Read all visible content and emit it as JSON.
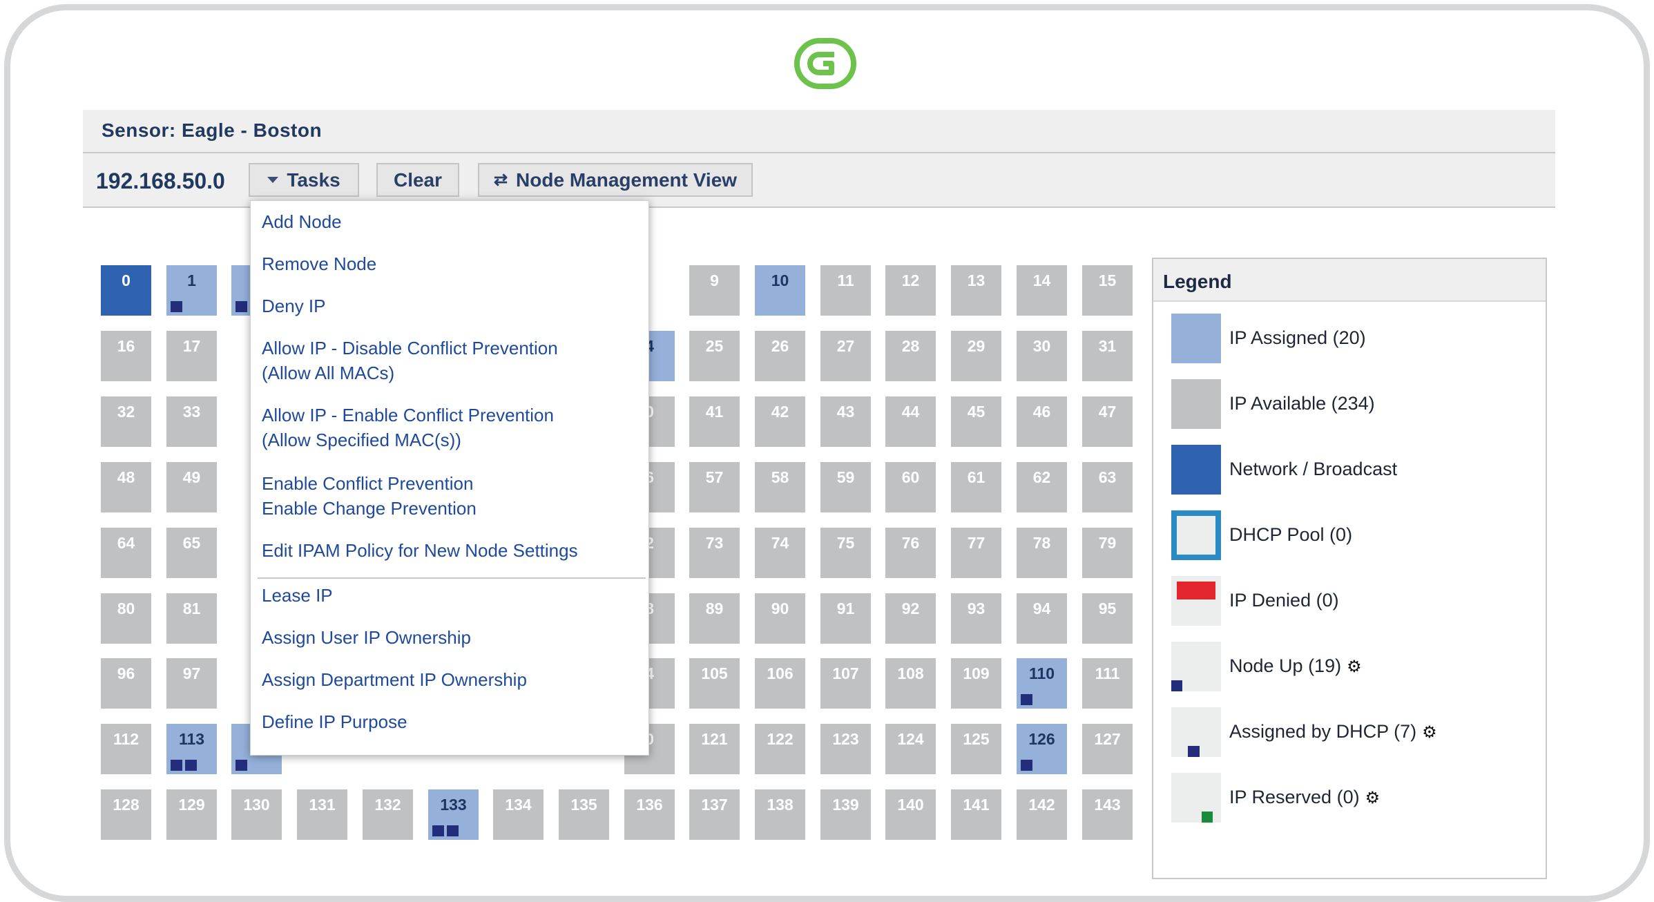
{
  "header": {
    "sensor_title": "Sensor: Eagle - Boston"
  },
  "toolbar": {
    "subnet": "192.168.50.0",
    "tasks_label": "Tasks",
    "clear_label": "Clear",
    "node_mgmt_label": "Node Management View"
  },
  "icons": {
    "logo": "g-logo-icon",
    "caret": "caret-down-icon",
    "swap": "swap-arrows-icon",
    "gear": "gear-icon"
  },
  "colors": {
    "assigned": "#95b1da",
    "available": "#c0c1c3",
    "network": "#2f63b1",
    "dhcp_pool_border": "#2a8bc4",
    "denied": "#e3262e",
    "node_up": "#222e7c",
    "reserved": "#1a8a3c",
    "logo": "#6cc24a"
  },
  "tasks_menu": {
    "items": [
      "Add Node",
      "Remove Node",
      "Deny IP",
      "Allow IP - Disable Conflict Prevention",
      "(Allow All MACs)",
      "Allow IP - Enable Conflict Prevention",
      "(Allow Specified MAC(s))",
      "Enable Conflict Prevention",
      "Enable Change Prevention",
      "Edit IPAM Policy for New Node Settings",
      "Lease IP",
      "Assign User IP Ownership",
      "Assign Department IP Ownership",
      "Define IP Purpose"
    ]
  },
  "ip_grid": {
    "visible_cells": [
      {
        "n": "0",
        "state": "network",
        "up": 0
      },
      {
        "n": "1",
        "state": "assigned",
        "up": 1
      },
      {
        "n": "",
        "state": "assigned",
        "up": 1
      },
      {
        "n": "9",
        "state": "available",
        "up": 0
      },
      {
        "n": "10",
        "state": "assigned",
        "up": 0
      },
      {
        "n": "11",
        "state": "available",
        "up": 0
      },
      {
        "n": "12",
        "state": "available",
        "up": 0
      },
      {
        "n": "13",
        "state": "available",
        "up": 0
      },
      {
        "n": "14",
        "state": "available",
        "up": 0
      },
      {
        "n": "15",
        "state": "available",
        "up": 0
      },
      {
        "n": "16",
        "state": "available",
        "up": 0
      },
      {
        "n": "17",
        "state": "available",
        "up": 0
      },
      {
        "n": "4",
        "state": "assigned",
        "up": 0
      },
      {
        "n": "25",
        "state": "available",
        "up": 0
      },
      {
        "n": "26",
        "state": "available",
        "up": 0
      },
      {
        "n": "27",
        "state": "available",
        "up": 0
      },
      {
        "n": "28",
        "state": "available",
        "up": 0
      },
      {
        "n": "29",
        "state": "available",
        "up": 0
      },
      {
        "n": "30",
        "state": "available",
        "up": 0
      },
      {
        "n": "31",
        "state": "available",
        "up": 0
      },
      {
        "n": "32",
        "state": "available",
        "up": 0
      },
      {
        "n": "33",
        "state": "available",
        "up": 0
      },
      {
        "n": "0",
        "state": "available",
        "up": 0
      },
      {
        "n": "41",
        "state": "available",
        "up": 0
      },
      {
        "n": "42",
        "state": "available",
        "up": 0
      },
      {
        "n": "43",
        "state": "available",
        "up": 0
      },
      {
        "n": "44",
        "state": "available",
        "up": 0
      },
      {
        "n": "45",
        "state": "available",
        "up": 0
      },
      {
        "n": "46",
        "state": "available",
        "up": 0
      },
      {
        "n": "47",
        "state": "available",
        "up": 0
      },
      {
        "n": "48",
        "state": "available",
        "up": 0
      },
      {
        "n": "49",
        "state": "available",
        "up": 0
      },
      {
        "n": "6",
        "state": "available",
        "up": 0
      },
      {
        "n": "57",
        "state": "available",
        "up": 0
      },
      {
        "n": "58",
        "state": "available",
        "up": 0
      },
      {
        "n": "59",
        "state": "available",
        "up": 0
      },
      {
        "n": "60",
        "state": "available",
        "up": 0
      },
      {
        "n": "61",
        "state": "available",
        "up": 0
      },
      {
        "n": "62",
        "state": "available",
        "up": 0
      },
      {
        "n": "63",
        "state": "available",
        "up": 0
      },
      {
        "n": "64",
        "state": "available",
        "up": 0
      },
      {
        "n": "65",
        "state": "available",
        "up": 0
      },
      {
        "n": "2",
        "state": "available",
        "up": 0
      },
      {
        "n": "73",
        "state": "available",
        "up": 0
      },
      {
        "n": "74",
        "state": "available",
        "up": 0
      },
      {
        "n": "75",
        "state": "available",
        "up": 0
      },
      {
        "n": "76",
        "state": "available",
        "up": 0
      },
      {
        "n": "77",
        "state": "available",
        "up": 0
      },
      {
        "n": "78",
        "state": "available",
        "up": 0
      },
      {
        "n": "79",
        "state": "available",
        "up": 0
      },
      {
        "n": "80",
        "state": "available",
        "up": 0
      },
      {
        "n": "81",
        "state": "available",
        "up": 0
      },
      {
        "n": "8",
        "state": "available",
        "up": 0
      },
      {
        "n": "89",
        "state": "available",
        "up": 0
      },
      {
        "n": "90",
        "state": "available",
        "up": 0
      },
      {
        "n": "91",
        "state": "available",
        "up": 0
      },
      {
        "n": "92",
        "state": "available",
        "up": 0
      },
      {
        "n": "93",
        "state": "available",
        "up": 0
      },
      {
        "n": "94",
        "state": "available",
        "up": 0
      },
      {
        "n": "95",
        "state": "available",
        "up": 0
      },
      {
        "n": "96",
        "state": "available",
        "up": 0
      },
      {
        "n": "97",
        "state": "available",
        "up": 0
      },
      {
        "n": "4",
        "state": "available",
        "up": 0
      },
      {
        "n": "105",
        "state": "available",
        "up": 0
      },
      {
        "n": "106",
        "state": "available",
        "up": 0
      },
      {
        "n": "107",
        "state": "available",
        "up": 0
      },
      {
        "n": "108",
        "state": "available",
        "up": 0
      },
      {
        "n": "109",
        "state": "available",
        "up": 0
      },
      {
        "n": "110",
        "state": "assigned",
        "up": 1
      },
      {
        "n": "111",
        "state": "available",
        "up": 0
      },
      {
        "n": "112",
        "state": "available",
        "up": 0
      },
      {
        "n": "113",
        "state": "assigned",
        "up": 2
      },
      {
        "n": "",
        "state": "assigned",
        "up": 1
      },
      {
        "n": "0",
        "state": "available",
        "up": 0
      },
      {
        "n": "121",
        "state": "available",
        "up": 0
      },
      {
        "n": "122",
        "state": "available",
        "up": 0
      },
      {
        "n": "123",
        "state": "available",
        "up": 0
      },
      {
        "n": "124",
        "state": "available",
        "up": 0
      },
      {
        "n": "125",
        "state": "available",
        "up": 0
      },
      {
        "n": "126",
        "state": "assigned",
        "up": 1
      },
      {
        "n": "127",
        "state": "available",
        "up": 0
      },
      {
        "n": "128",
        "state": "available",
        "up": 0
      },
      {
        "n": "129",
        "state": "available",
        "up": 0
      },
      {
        "n": "130",
        "state": "available",
        "up": 0
      },
      {
        "n": "131",
        "state": "available",
        "up": 0
      },
      {
        "n": "132",
        "state": "available",
        "up": 0
      },
      {
        "n": "133",
        "state": "assigned",
        "up": 2
      },
      {
        "n": "134",
        "state": "available",
        "up": 0
      },
      {
        "n": "135",
        "state": "available",
        "up": 0
      },
      {
        "n": "136",
        "state": "available",
        "up": 0
      },
      {
        "n": "137",
        "state": "available",
        "up": 0
      },
      {
        "n": "138",
        "state": "available",
        "up": 0
      },
      {
        "n": "139",
        "state": "available",
        "up": 0
      },
      {
        "n": "140",
        "state": "available",
        "up": 0
      },
      {
        "n": "141",
        "state": "available",
        "up": 0
      },
      {
        "n": "142",
        "state": "available",
        "up": 0
      },
      {
        "n": "143",
        "state": "available",
        "up": 0
      }
    ]
  },
  "legend": {
    "title": "Legend",
    "items": [
      {
        "label": "IP Assigned (20)",
        "type": "assigned",
        "gear": false
      },
      {
        "label": "IP Available (234)",
        "type": "available",
        "gear": false
      },
      {
        "label": "Network / Broadcast",
        "type": "network",
        "gear": false
      },
      {
        "label": "DHCP Pool (0)",
        "type": "dhcp",
        "gear": false
      },
      {
        "label": "IP Denied (0)",
        "type": "denied",
        "gear": false
      },
      {
        "label": "Node Up (19)",
        "type": "nodeup",
        "gear": true
      },
      {
        "label": "Assigned by DHCP (7)",
        "type": "bydhcp",
        "gear": true
      },
      {
        "label": "IP Reserved (0)",
        "type": "reserved",
        "gear": true
      }
    ]
  }
}
